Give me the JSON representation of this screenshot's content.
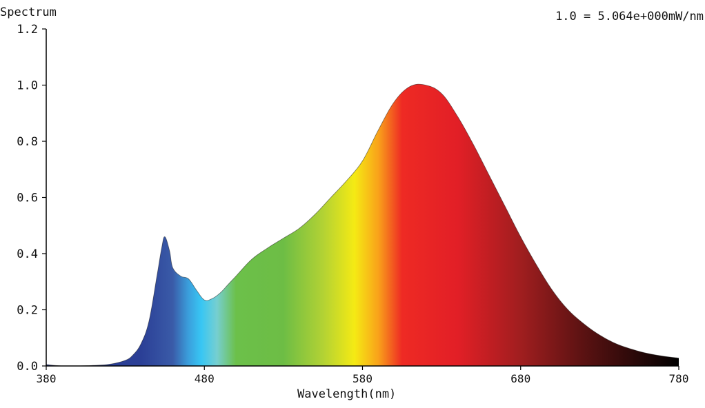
{
  "chart_data": {
    "type": "area",
    "title": "Spectrum",
    "normalization_note": "1.0 = 5.064e+000mW/nm",
    "xlabel": "Wavelength(nm)",
    "ylabel": "",
    "xlim": [
      380,
      780
    ],
    "ylim": [
      0,
      1.2
    ],
    "x_ticks": [
      380,
      480,
      580,
      680,
      780
    ],
    "x_tick_labels": [
      "380",
      "480",
      "580",
      "680",
      "780"
    ],
    "y_ticks": [
      0.0,
      0.2,
      0.4,
      0.6,
      0.8,
      1.0,
      1.2
    ],
    "y_tick_labels": [
      "0.0",
      "0.2",
      "0.4",
      "0.6",
      "0.8",
      "1.0",
      "1.2"
    ],
    "grid": false,
    "legend": "none",
    "fill": "visible-spectrum gradient",
    "series": [
      {
        "x": [
          380,
          390,
          400,
          410,
          420,
          430,
          435,
          440,
          445,
          450,
          453,
          455,
          458,
          460,
          465,
          470,
          475,
          480,
          485,
          490,
          495,
          500,
          510,
          520,
          530,
          540,
          550,
          560,
          570,
          580,
          590,
          600,
          610,
          620,
          630,
          640,
          650,
          660,
          670,
          680,
          690,
          700,
          710,
          720,
          730,
          740,
          750,
          760,
          770,
          780
        ],
        "values": [
          0.005,
          0.0,
          0.0,
          0.002,
          0.006,
          0.02,
          0.04,
          0.08,
          0.16,
          0.32,
          0.42,
          0.46,
          0.41,
          0.35,
          0.32,
          0.31,
          0.27,
          0.235,
          0.24,
          0.26,
          0.29,
          0.32,
          0.38,
          0.42,
          0.455,
          0.49,
          0.54,
          0.6,
          0.66,
          0.73,
          0.84,
          0.94,
          0.995,
          1.0,
          0.97,
          0.89,
          0.79,
          0.68,
          0.57,
          0.46,
          0.36,
          0.27,
          0.2,
          0.15,
          0.11,
          0.08,
          0.06,
          0.045,
          0.035,
          0.028
        ]
      }
    ],
    "colors": {
      "axis": "#000000",
      "text": "#111111",
      "gradient_stops": [
        {
          "nm": 440,
          "color": "#2b3f96"
        },
        {
          "nm": 460,
          "color": "#3a5ba8"
        },
        {
          "nm": 470,
          "color": "#3a9fdc"
        },
        {
          "nm": 478,
          "color": "#38c6f4"
        },
        {
          "nm": 488,
          "color": "#76cfd0"
        },
        {
          "nm": 500,
          "color": "#6cc04a"
        },
        {
          "nm": 530,
          "color": "#6dbd45"
        },
        {
          "nm": 555,
          "color": "#b2d234"
        },
        {
          "nm": 575,
          "color": "#f5ea14"
        },
        {
          "nm": 590,
          "color": "#f9a21a"
        },
        {
          "nm": 605,
          "color": "#ee2a24"
        },
        {
          "nm": 640,
          "color": "#e21f26"
        },
        {
          "nm": 680,
          "color": "#a01e1f"
        },
        {
          "nm": 720,
          "color": "#5a1212"
        },
        {
          "nm": 780,
          "color": "#000000"
        }
      ]
    }
  }
}
